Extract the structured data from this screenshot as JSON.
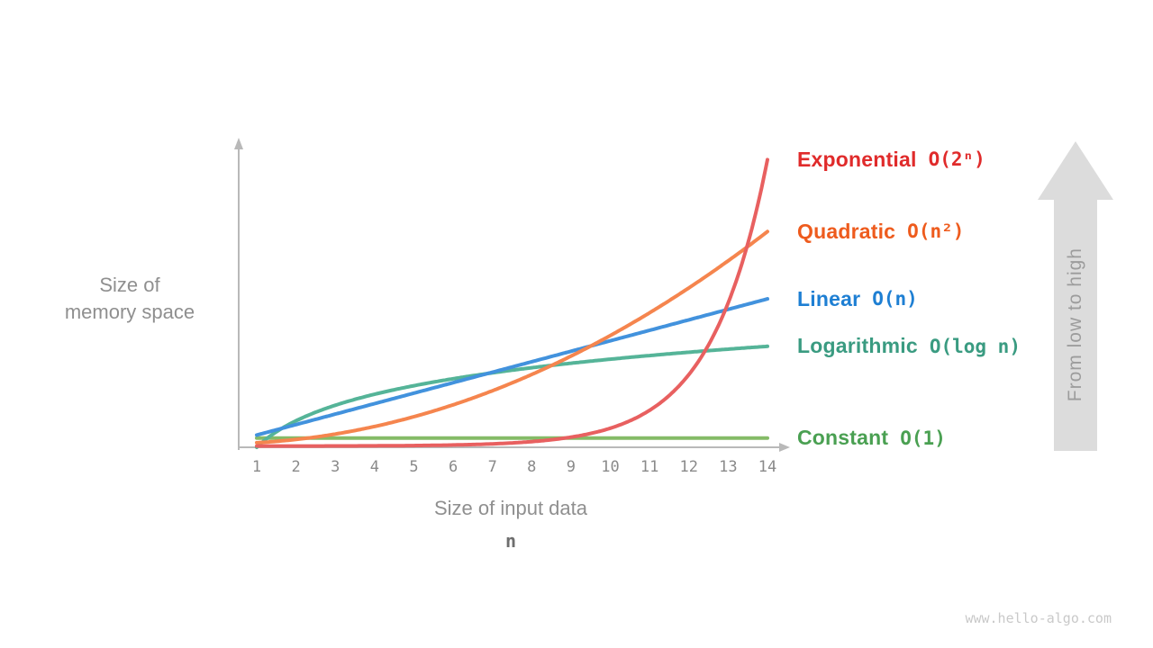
{
  "watermark": "www.hello-algo.com",
  "side_arrow": {
    "text": "From low to high"
  },
  "chart_data": {
    "type": "line",
    "title": "",
    "grid": false,
    "legend_position": "right of curve ends",
    "x_axis": {
      "label": "Size of input data",
      "symbol": "n",
      "ticks": [
        1,
        2,
        3,
        4,
        5,
        6,
        7,
        8,
        9,
        10,
        11,
        12,
        13,
        14
      ],
      "range": [
        1,
        14
      ]
    },
    "y_axis": {
      "label_line1": "Size of",
      "label_line2": "memory space",
      "ticks": [],
      "note": "magnitude axis without numeric ticks; each curve independently scaled for schematic comparison"
    },
    "series": [
      {
        "name": "Exponential",
        "big_o": "O(2ⁿ)",
        "formula": "2^n",
        "values_at_ticks": [
          2,
          4,
          8,
          16,
          32,
          64,
          128,
          256,
          512,
          1024,
          2048,
          4096,
          8192,
          16384
        ],
        "curve_color": "#e86060",
        "label_color": "#e02b2b",
        "display_start_fraction": 0.004,
        "display_end_fraction": 0.94
      },
      {
        "name": "Quadratic",
        "big_o": "O(n²)",
        "formula": "n^2",
        "values_at_ticks": [
          1,
          4,
          9,
          16,
          25,
          36,
          49,
          64,
          81,
          100,
          121,
          144,
          169,
          196
        ],
        "curve_color": "#f5854e",
        "label_color": "#ee5b1d",
        "display_start_fraction": 0.015,
        "display_end_fraction": 0.705
      },
      {
        "name": "Linear",
        "big_o": "O(n)",
        "formula": "n",
        "values_at_ticks": [
          1,
          2,
          3,
          4,
          5,
          6,
          7,
          8,
          9,
          10,
          11,
          12,
          13,
          14
        ],
        "curve_color": "#4292dd",
        "label_color": "#1e7fd3",
        "display_start_fraction": 0.04,
        "display_end_fraction": 0.485
      },
      {
        "name": "Logarithmic",
        "big_o": "O(log n)",
        "formula": "log n",
        "values_at_ticks": [
          0,
          0.693,
          1.099,
          1.386,
          1.609,
          1.792,
          1.946,
          2.079,
          2.197,
          2.303,
          2.398,
          2.485,
          2.565,
          2.639
        ],
        "curve_color": "#55b498",
        "label_color": "#3a9b81",
        "display_start_fraction": 0.0,
        "display_end_fraction": 0.33
      },
      {
        "name": "Constant",
        "big_o": "O(1)",
        "formula": "1",
        "values_at_ticks": [
          1,
          1,
          1,
          1,
          1,
          1,
          1,
          1,
          1,
          1,
          1,
          1,
          1,
          1
        ],
        "curve_color": "#85bb67",
        "label_color": "#4aa052",
        "display_start_fraction": 0.03,
        "display_end_fraction": 0.03
      }
    ]
  }
}
